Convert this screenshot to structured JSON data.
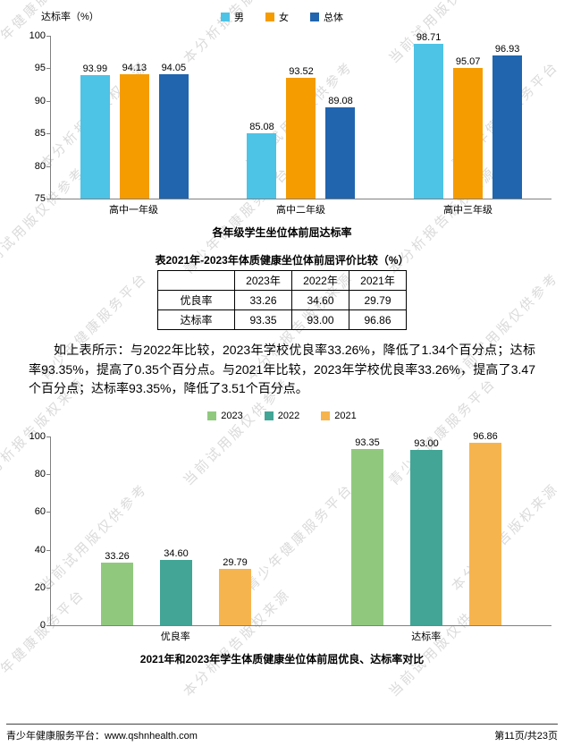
{
  "chart_data": [
    {
      "type": "bar",
      "title": "各年级学生坐位体前屈达标率",
      "ylabel": "达标率（%）",
      "xlabel": "",
      "ylim": [
        75,
        100
      ],
      "yticks": [
        75,
        80,
        85,
        90,
        95,
        100
      ],
      "grid": false,
      "legend_position": "top",
      "categories": [
        "高中一年级",
        "高中二年级",
        "高中三年级"
      ],
      "series": [
        {
          "name": "男",
          "color": "#4DC3E6",
          "values": [
            93.99,
            85.08,
            98.71
          ],
          "value_labels": [
            "93.99",
            "85.08",
            "98.71"
          ]
        },
        {
          "name": "女",
          "color": "#F59C00",
          "values": [
            94.13,
            93.52,
            95.07
          ],
          "value_labels": [
            "94.13",
            "93.52",
            "95.07"
          ]
        },
        {
          "name": "总体",
          "color": "#2065AE",
          "values": [
            94.05,
            89.08,
            96.93
          ],
          "value_labels": [
            "94.05",
            "89.08",
            "96.93"
          ]
        }
      ]
    },
    {
      "type": "bar",
      "title": "2021年和2023年学生体质健康坐位体前屈优良、达标率对比",
      "ylabel": "",
      "xlabel": "",
      "ylim": [
        0,
        100
      ],
      "yticks": [
        0,
        20,
        40,
        60,
        80,
        100
      ],
      "grid": false,
      "legend_position": "top",
      "categories": [
        "优良率",
        "达标率"
      ],
      "series": [
        {
          "name": "2023",
          "color": "#90C97E",
          "values": [
            33.26,
            93.35
          ],
          "value_labels": [
            "33.26",
            "93.35"
          ]
        },
        {
          "name": "2022",
          "color": "#42A596",
          "values": [
            34.6,
            93.0
          ],
          "value_labels": [
            "34.60",
            "93.00"
          ]
        },
        {
          "name": "2021",
          "color": "#F6B44E",
          "values": [
            29.79,
            96.86
          ],
          "value_labels": [
            "29.79",
            "96.86"
          ]
        }
      ]
    }
  ],
  "table": {
    "caption": "表2021年-2023年体质健康坐位体前屈评价比较（%）",
    "headers": [
      "",
      "2023年",
      "2022年",
      "2021年"
    ],
    "rows": [
      {
        "label": "优良率",
        "values": [
          "33.26",
          "34.60",
          "29.79"
        ]
      },
      {
        "label": "达标率",
        "values": [
          "93.35",
          "93.00",
          "96.86"
        ]
      }
    ]
  },
  "paragraph": {
    "text": "如上表所示：与2022年比较，2023年学校优良率33.26%，降低了1.34个百分点；达标率93.35%，提高了0.35个百分点。与2021年比较，2023年学校优良率33.26%，提高了3.47个百分点；达标率93.35%，降低了3.51个百分点。"
  },
  "watermarks": {
    "phrases": [
      "青少年健康服务平台",
      "本分析报告版权来源",
      "当前试用版仅供参考"
    ]
  },
  "footer": {
    "left": "青少年健康服务平台：www.qshnhealth.com",
    "right": "第11页/共23页"
  }
}
